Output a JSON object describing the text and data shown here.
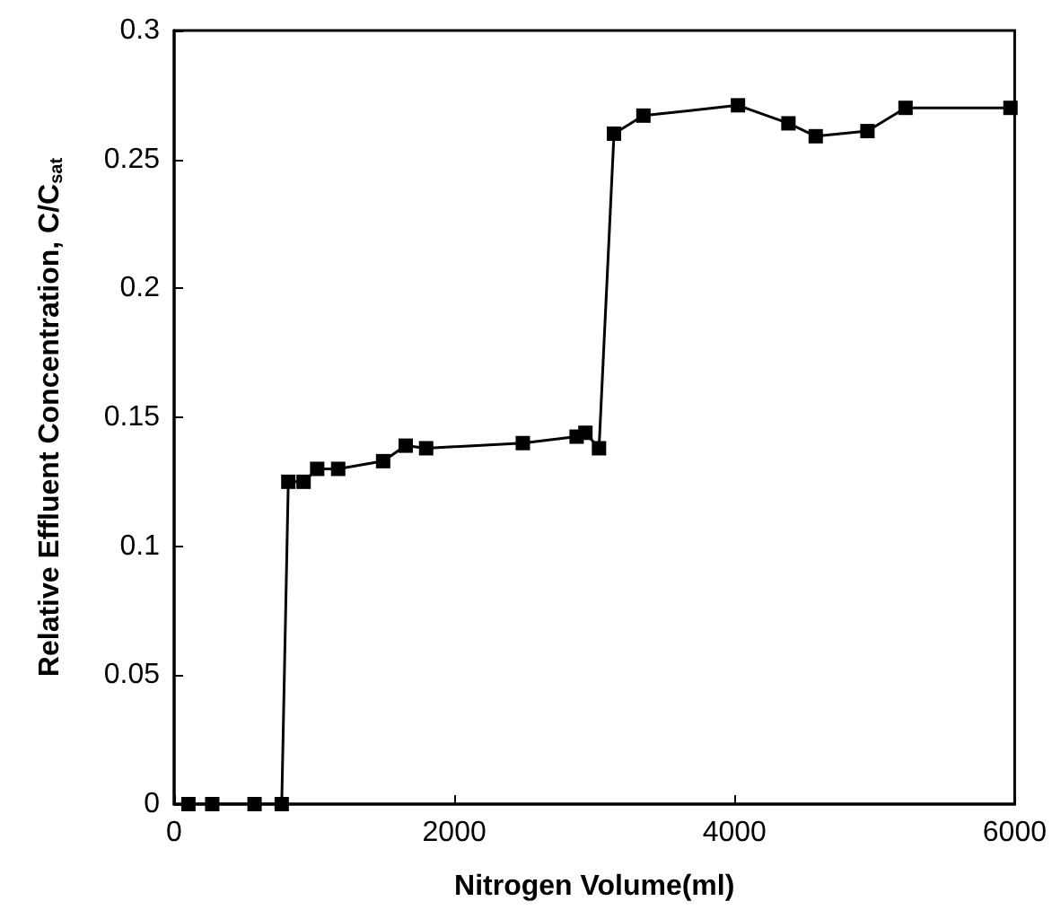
{
  "chart_data": {
    "type": "line",
    "xlabel": "Nitrogen Volume(ml)",
    "ylabel": "Relative Effluent Concentration, C/C$_{sat}$",
    "x": [
      102,
      272,
      574,
      768,
      815,
      924,
      1021,
      1171,
      1492,
      1653,
      1799,
      2489,
      2873,
      2936,
      3033,
      3140,
      3350,
      4025,
      4385,
      4580,
      4949,
      5221,
      5970
    ],
    "series": [
      {
        "color": "#000000",
        "values": [
          0,
          0,
          0,
          0,
          0.125,
          0.125,
          0.13,
          0.13,
          0.133,
          0.139,
          0.138,
          0.14,
          0.1425,
          0.144,
          0.138,
          0.26,
          0.267,
          0.271,
          0.264,
          0.259,
          0.261,
          0.27,
          0.27
        ]
      }
    ],
    "xlim": [
      0,
      6000
    ],
    "xticks": [
      0,
      2000,
      4000,
      6000
    ],
    "ylim": [
      0,
      0.3
    ],
    "yticks": [
      0,
      0.05,
      0.1,
      0.15,
      0.2,
      0.25,
      0.3
    ],
    "grid": false,
    "marker": "square",
    "line_style": "solid"
  }
}
